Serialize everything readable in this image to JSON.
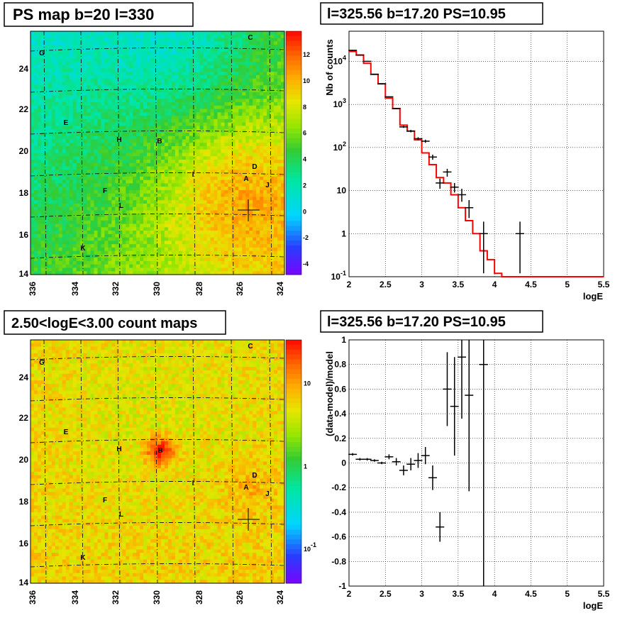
{
  "colors": {
    "map_low": "#00ffff",
    "map_mid": "#33cc33",
    "map_high": "#ff3300",
    "model_line": "#ff0000",
    "data_points": "#000000",
    "grid": "#000000"
  },
  "maps": [
    {
      "title": "PS map b=20 l=330",
      "x_ticks": [
        "336",
        "334",
        "332",
        "330",
        "328",
        "326",
        "324"
      ],
      "y_ticks": [
        "14",
        "16",
        "18",
        "20",
        "22",
        "24"
      ],
      "colorbar_ticks": [
        "-4",
        "-2",
        "0",
        "2",
        "4",
        "6",
        "8",
        "10",
        "12"
      ],
      "source_labels": [
        "A",
        "B",
        "C",
        "D",
        "E",
        "F",
        "G",
        "H",
        "I",
        "J",
        "K",
        "L"
      ]
    },
    {
      "title": "2.50<logE<3.00 count maps",
      "x_ticks": [
        "336",
        "334",
        "332",
        "330",
        "328",
        "326",
        "324"
      ],
      "y_ticks": [
        "14",
        "16",
        "18",
        "20",
        "22",
        "24"
      ],
      "colorbar_ticks": [
        "10^-1",
        "1",
        "10"
      ],
      "source_labels": [
        "A",
        "B",
        "C",
        "D",
        "E",
        "F",
        "G",
        "H",
        "I",
        "J",
        "K",
        "L"
      ]
    }
  ],
  "chart_data": [
    {
      "type": "line",
      "title": "l=325.56 b=17.20 PS=10.95",
      "xlabel": "logE",
      "ylabel": "Nb of counts",
      "xlim": [
        2,
        5.5
      ],
      "ylim": [
        0.1,
        50000
      ],
      "yscale": "log",
      "grid": true,
      "x_ticks": [
        "2",
        "2.5",
        "3",
        "3.5",
        "4",
        "4.5",
        "5",
        "5.5"
      ],
      "y_ticks": [
        "10^-1",
        "1",
        "10",
        "10^2",
        "10^3",
        "10^4"
      ],
      "model": {
        "bin_edges": [
          2.0,
          2.1,
          2.2,
          2.3,
          2.4,
          2.5,
          2.6,
          2.7,
          2.8,
          2.9,
          3.0,
          3.1,
          3.2,
          3.3,
          3.4,
          3.5,
          3.6,
          3.7,
          3.8,
          3.9,
          4.0,
          4.1,
          4.2,
          4.3,
          4.4,
          4.5,
          4.6,
          4.7,
          4.8,
          4.9,
          5.0,
          5.1,
          5.2,
          5.3,
          5.4,
          5.5
        ],
        "values": [
          17000,
          14000,
          9000,
          5000,
          3000,
          1400,
          800,
          330,
          240,
          150,
          75,
          40,
          20,
          15,
          8,
          4,
          2,
          1,
          0.4,
          0.25,
          0.12,
          0.1,
          0.1,
          0.1,
          0.1,
          0.1,
          0.1,
          0.1,
          0.1,
          0.1,
          0.1,
          0.1,
          0.1,
          0.1,
          0.1
        ]
      },
      "data": {
        "x": [
          2.05,
          2.15,
          2.25,
          2.35,
          2.45,
          2.55,
          2.65,
          2.75,
          2.85,
          2.95,
          3.05,
          3.15,
          3.25,
          3.35,
          3.45,
          3.55,
          3.65,
          3.85,
          4.35
        ],
        "y": [
          18000,
          14000,
          10000,
          5000,
          3000,
          1500,
          800,
          300,
          240,
          160,
          140,
          60,
          15,
          27,
          12,
          8,
          4,
          1,
          1
        ],
        "err_low": [
          17500,
          13600,
          9800,
          4900,
          2900,
          1460,
          770,
          285,
          225,
          148,
          128,
          52,
          11,
          21,
          9,
          5.5,
          2.3,
          0.12,
          0.12
        ],
        "err_high": [
          18500,
          14400,
          10200,
          5100,
          3100,
          1540,
          830,
          318,
          256,
          173,
          152,
          68,
          19,
          32,
          15,
          11,
          6,
          1.9,
          1.9
        ]
      }
    },
    {
      "type": "scatter",
      "title": "l=325.56 b=17.20 PS=10.95",
      "xlabel": "logE",
      "ylabel": "(data-model)/model",
      "xlim": [
        2,
        5.5
      ],
      "ylim": [
        -1,
        1
      ],
      "grid": true,
      "x_ticks": [
        "2",
        "2.5",
        "3",
        "3.5",
        "4",
        "4.5",
        "5",
        "5.5"
      ],
      "y_ticks": [
        "-1",
        "-0.8",
        "-0.6",
        "-0.4",
        "-0.2",
        "0",
        "0.2",
        "0.4",
        "0.6",
        "0.8",
        "1"
      ],
      "x": [
        2.05,
        2.15,
        2.25,
        2.35,
        2.45,
        2.55,
        2.65,
        2.75,
        2.85,
        2.95,
        3.05,
        3.15,
        3.25,
        3.35,
        3.45,
        3.55,
        3.65,
        3.85
      ],
      "y": [
        0.07,
        0.03,
        0.03,
        0.02,
        0.0,
        0.05,
        0.01,
        -0.06,
        -0.01,
        0.02,
        0.06,
        -0.12,
        -0.52,
        0.6,
        0.46,
        0.86,
        0.55,
        0.8
      ],
      "err": [
        0.01,
        0.01,
        0.01,
        0.01,
        0.01,
        0.02,
        0.03,
        0.04,
        0.05,
        0.06,
        0.07,
        0.1,
        0.12,
        0.3,
        0.4,
        0.5,
        0.78,
        1.8
      ]
    }
  ]
}
